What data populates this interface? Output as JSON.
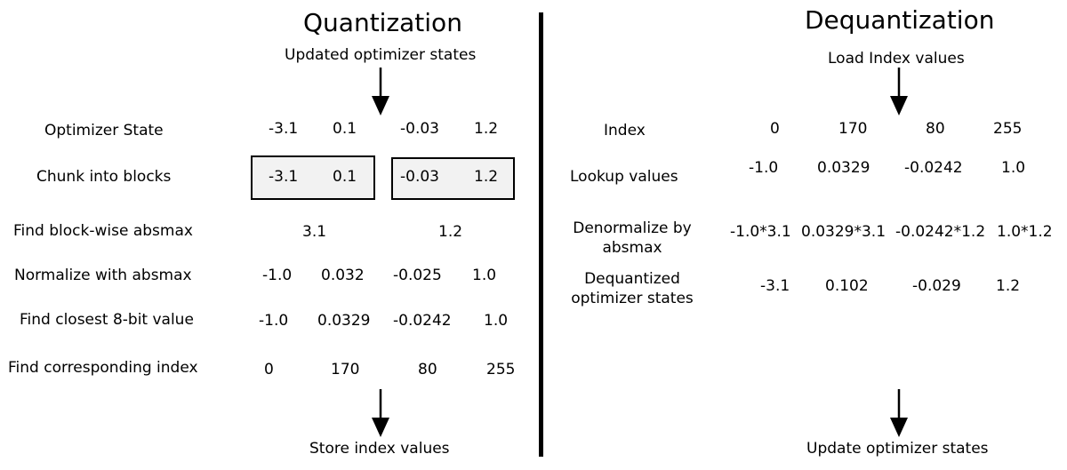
{
  "quantization": {
    "title": "Quantization",
    "top_label": "Updated optimizer states",
    "bottom_label": "Store index values",
    "rows": [
      {
        "label": "Optimizer State",
        "values": [
          "-3.1",
          "0.1",
          "-0.03",
          "1.2"
        ]
      },
      {
        "label": "Chunk into blocks",
        "values": [
          "-3.1",
          "0.1",
          "-0.03",
          "1.2"
        ]
      },
      {
        "label": "Find block-wise absmax",
        "values": [
          "3.1",
          "1.2"
        ]
      },
      {
        "label": "Normalize with absmax",
        "values": [
          "-1.0",
          "0.032",
          "-0.025",
          "1.0"
        ]
      },
      {
        "label": "Find closest 8-bit value",
        "values": [
          "-1.0",
          "0.0329",
          "-0.0242",
          "1.0"
        ]
      },
      {
        "label": "Find corresponding index",
        "values": [
          "0",
          "170",
          "80",
          "255"
        ]
      }
    ]
  },
  "dequantization": {
    "title": "Dequantization",
    "top_label": "Load Index values",
    "bottom_label": "Update optimizer states",
    "rows": [
      {
        "label": "Index",
        "values": [
          "0",
          "170",
          "80",
          "255"
        ]
      },
      {
        "label": "Lookup values",
        "values": [
          "-1.0",
          "0.0329",
          "-0.0242",
          "1.0"
        ]
      },
      {
        "label_line1": "Denormalize by",
        "label_line2": "absmax",
        "values": [
          "-1.0*3.1",
          "0.0329*3.1",
          "-0.0242*1.2",
          "1.0*1.2"
        ]
      },
      {
        "label_line1": "Dequantized",
        "label_line2": "optimizer states",
        "values": [
          "-3.1",
          "0.102",
          "-0.029",
          "1.2"
        ]
      }
    ]
  }
}
